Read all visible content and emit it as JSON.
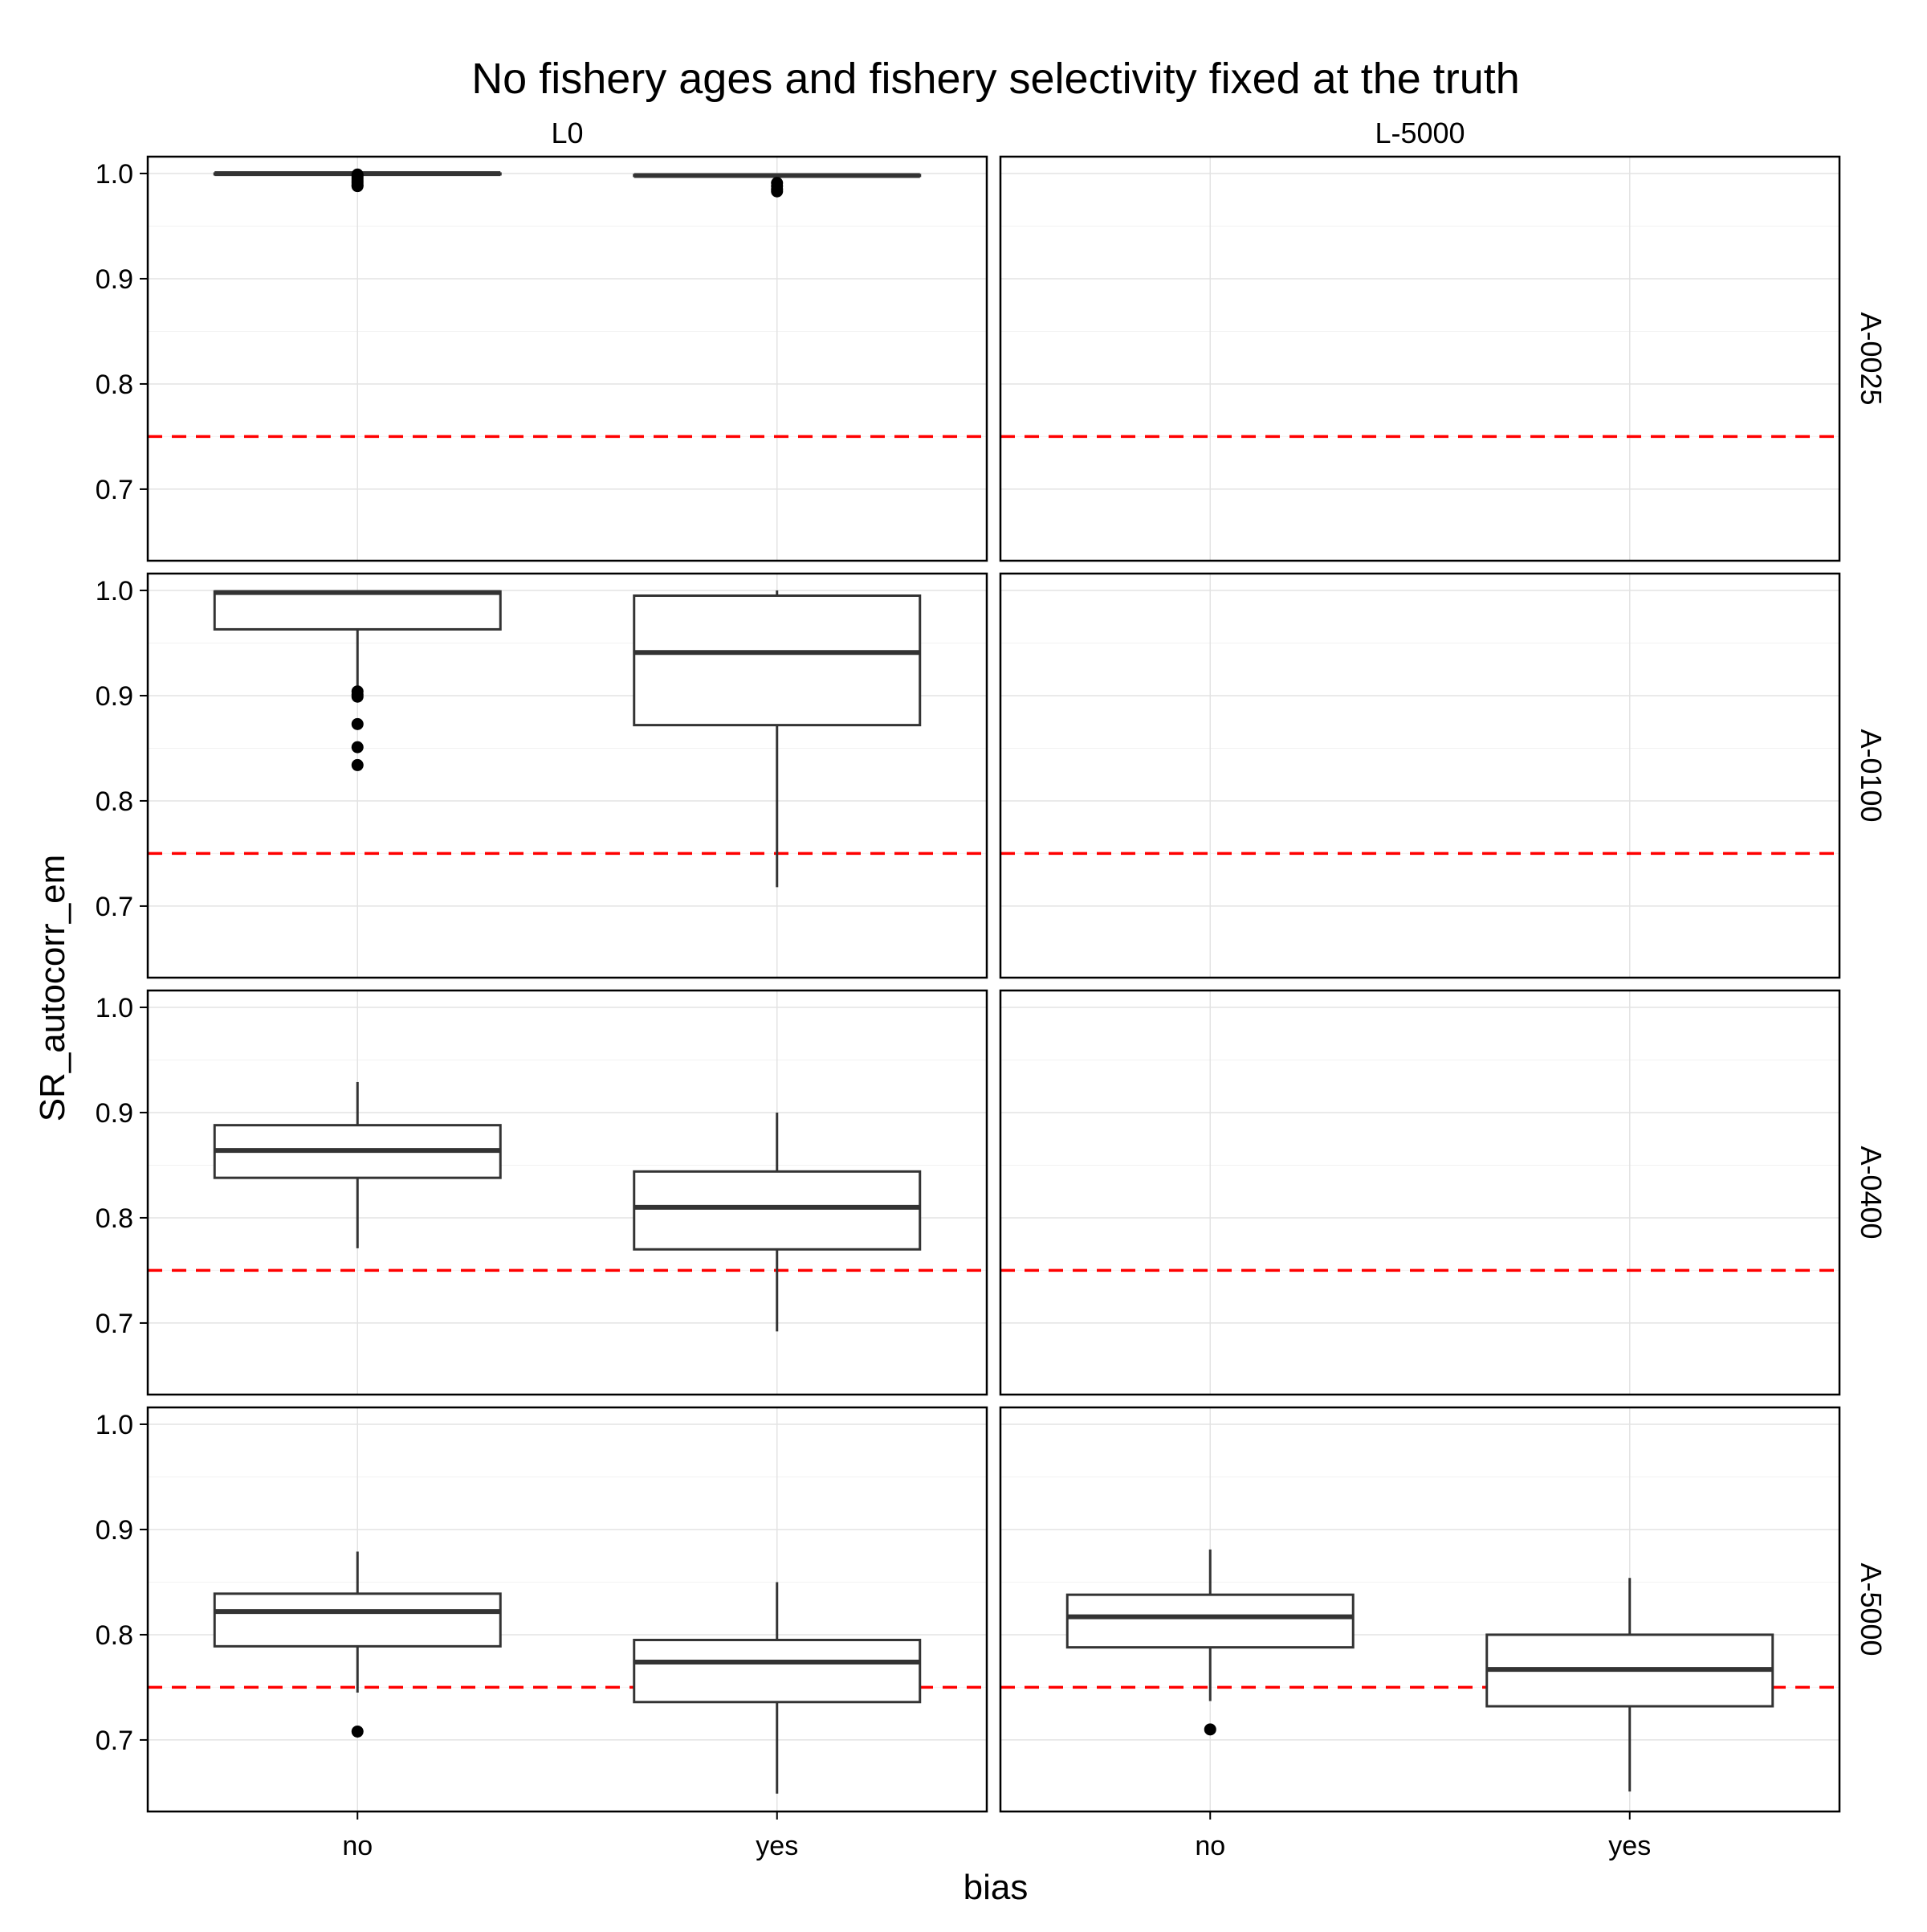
{
  "chart_data": {
    "type": "boxplot",
    "title": "No fishery ages and fishery selectivity fixed at the truth",
    "xlabel": "bias",
    "ylabel": "SR_autocorr_em",
    "categories": [
      "no",
      "yes"
    ],
    "col_facets": [
      "L0",
      "L-5000"
    ],
    "row_facets": [
      "A-0025",
      "A-0100",
      "A-0400",
      "A-5000"
    ],
    "ylim": [
      0.632,
      1.016
    ],
    "yticks": [
      0.7,
      0.8,
      0.9,
      1.0
    ],
    "ytick_labels": [
      "0.7",
      "0.8",
      "0.9",
      "1.0"
    ],
    "reference_line": {
      "y": 0.75,
      "color": "#ff0000",
      "style": "dashed"
    },
    "grid": true,
    "panels": [
      {
        "col": "L0",
        "row": "A-0025",
        "boxes": [
          {
            "x": "no",
            "lower": 0.9995,
            "q1": 0.9998,
            "median": 0.9999,
            "q3": 1.0,
            "upper": 1.0,
            "outliers": [
              0.999,
              0.997,
              0.995,
              0.993,
              0.991,
              0.989,
              0.988
            ]
          },
          {
            "x": "yes",
            "lower": 0.9975,
            "q1": 0.9978,
            "median": 0.9981,
            "q3": 0.9985,
            "upper": 0.9988,
            "outliers": [
              0.991,
              0.988,
              0.985,
              0.983
            ]
          }
        ]
      },
      {
        "col": "L-5000",
        "row": "A-0025",
        "boxes": []
      },
      {
        "col": "L0",
        "row": "A-0100",
        "boxes": [
          {
            "x": "no",
            "lower": 0.903,
            "q1": 0.963,
            "median": 0.998,
            "q3": 0.999,
            "upper": 1.0,
            "outliers": [
              0.904,
              0.901,
              0.899,
              0.873,
              0.851,
              0.834
            ]
          },
          {
            "x": "yes",
            "lower": 0.718,
            "q1": 0.872,
            "median": 0.941,
            "q3": 0.995,
            "upper": 1.0,
            "outliers": []
          }
        ]
      },
      {
        "col": "L-5000",
        "row": "A-0100",
        "boxes": []
      },
      {
        "col": "L0",
        "row": "A-0400",
        "boxes": [
          {
            "x": "no",
            "lower": 0.771,
            "q1": 0.838,
            "median": 0.864,
            "q3": 0.888,
            "upper": 0.929,
            "outliers": []
          },
          {
            "x": "yes",
            "lower": 0.692,
            "q1": 0.77,
            "median": 0.81,
            "q3": 0.844,
            "upper": 0.9,
            "outliers": []
          }
        ]
      },
      {
        "col": "L-5000",
        "row": "A-0400",
        "boxes": []
      },
      {
        "col": "L0",
        "row": "A-5000",
        "boxes": [
          {
            "x": "no",
            "lower": 0.745,
            "q1": 0.789,
            "median": 0.822,
            "q3": 0.839,
            "upper": 0.879,
            "outliers": [
              0.708
            ]
          },
          {
            "x": "yes",
            "lower": 0.649,
            "q1": 0.736,
            "median": 0.774,
            "q3": 0.795,
            "upper": 0.85,
            "outliers": []
          }
        ]
      },
      {
        "col": "L-5000",
        "row": "A-5000",
        "boxes": [
          {
            "x": "no",
            "lower": 0.737,
            "q1": 0.788,
            "median": 0.817,
            "q3": 0.838,
            "upper": 0.881,
            "outliers": [
              0.71
            ]
          },
          {
            "x": "yes",
            "lower": 0.651,
            "q1": 0.732,
            "median": 0.767,
            "q3": 0.8,
            "upper": 0.854,
            "outliers": []
          }
        ]
      }
    ]
  }
}
